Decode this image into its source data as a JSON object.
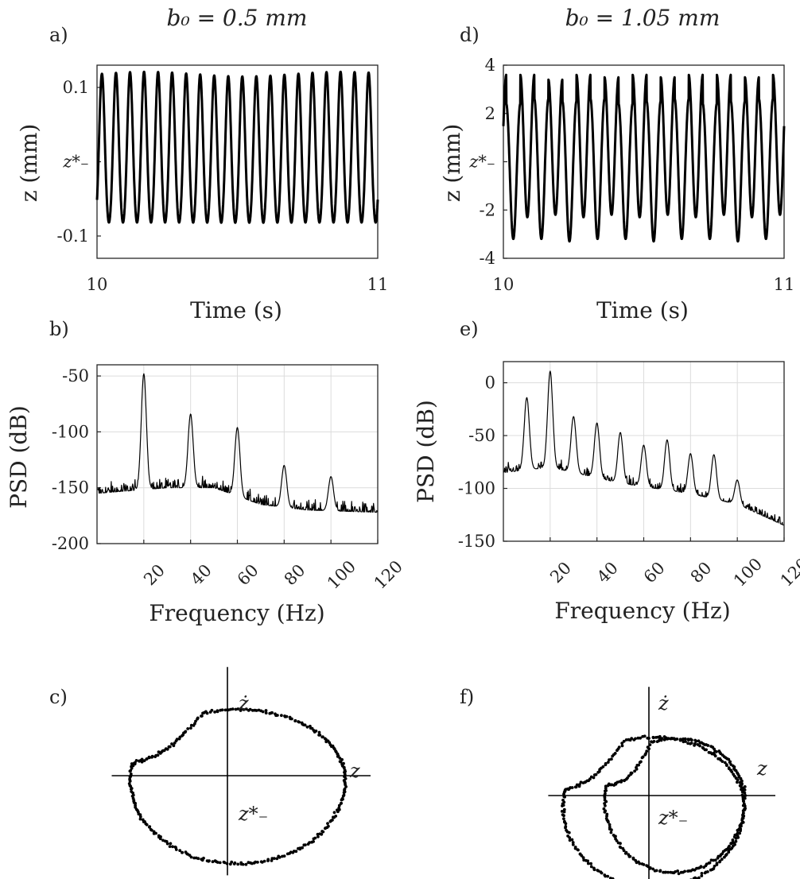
{
  "figure": {
    "titles": {
      "left": "b₀ = 0.5 mm",
      "right": "b₀ = 1.05 mm"
    }
  },
  "chart_data": [
    {
      "id": "a",
      "panel_label": "a)",
      "type": "line",
      "xlabel": "Time (s)",
      "ylabel": "z (mm)",
      "xlim": [
        10,
        11
      ],
      "ylim": [
        -0.13,
        0.13
      ],
      "xticks": [
        "10",
        "11"
      ],
      "yticks": [
        {
          "value": 0.1,
          "label": "0.1"
        },
        {
          "value": 0,
          "label": "z*₋"
        },
        {
          "value": -0.1,
          "label": "-0.1"
        }
      ],
      "grid": false,
      "series": [
        {
          "frequency_hz": 20,
          "amplitude_upper": 0.11,
          "amplitude_lower": -0.09,
          "phase_start": -0.075
        }
      ]
    },
    {
      "id": "d",
      "panel_label": "d)",
      "type": "line",
      "xlabel": "Time (s)",
      "ylabel": "z (mm)",
      "xlim": [
        10,
        11
      ],
      "ylim": [
        -4,
        4
      ],
      "xticks": [
        "10",
        "11"
      ],
      "yticks": [
        {
          "value": 4,
          "label": "4"
        },
        {
          "value": 2,
          "label": "2"
        },
        {
          "value": 0,
          "label": "z*₋"
        },
        {
          "value": -2,
          "label": "-2"
        },
        {
          "value": -4,
          "label": "-4"
        }
      ],
      "grid": false,
      "series": [
        {
          "frequency_hz": 20,
          "cycle_peaks": [
            2.4,
            3.6,
            2.6,
            3.4,
            2.5,
            3.6,
            2.6,
            3.5,
            2.4,
            3.6,
            2.5,
            3.5,
            2.6,
            3.6,
            2.4,
            3.6,
            2.5,
            3.5,
            2.6,
            3.6
          ],
          "cycle_troughs": [
            -3.2,
            -2.3,
            -3.2,
            -2.2,
            -3.3,
            -2.3,
            -3.2,
            -2.2,
            -3.2,
            -2.3,
            -3.3,
            -2.2,
            -3.2,
            -2.3,
            -3.2,
            -2.2,
            -3.3,
            -2.3,
            -3.2,
            -2.2
          ]
        }
      ]
    },
    {
      "id": "b",
      "panel_label": "b)",
      "type": "line",
      "xlabel": "Frequency (Hz)",
      "ylabel": "PSD (dB)",
      "xlim": [
        0,
        120
      ],
      "ylim": [
        -200,
        -40
      ],
      "xticks": [
        20,
        40,
        60,
        80,
        100,
        120
      ],
      "yticks": [
        {
          "value": -50,
          "label": "-50"
        },
        {
          "value": -100,
          "label": "-100"
        },
        {
          "value": -150,
          "label": "-150"
        },
        {
          "value": -200,
          "label": "-200"
        }
      ],
      "grid": true,
      "series": [
        {
          "noise_floor": [
            [
              0,
              -155
            ],
            [
              30,
              -150
            ],
            [
              50,
              -150
            ],
            [
              70,
              -165
            ],
            [
              90,
              -170
            ],
            [
              120,
              -172
            ]
          ],
          "peaks": [
            {
              "x": 20,
              "y": -48
            },
            {
              "x": 40,
              "y": -84
            },
            {
              "x": 60,
              "y": -96
            },
            {
              "x": 80,
              "y": -130
            },
            {
              "x": 100,
              "y": -140
            }
          ]
        }
      ]
    },
    {
      "id": "e",
      "panel_label": "e)",
      "type": "line",
      "xlabel": "Frequency (Hz)",
      "ylabel": "PSD (dB)",
      "xlim": [
        0,
        120
      ],
      "ylim": [
        -150,
        20
      ],
      "xticks": [
        20,
        40,
        60,
        80,
        100,
        120
      ],
      "yticks": [
        {
          "value": 0,
          "label": "0"
        },
        {
          "value": -50,
          "label": "-50"
        },
        {
          "value": -100,
          "label": "-100"
        },
        {
          "value": -150,
          "label": "-150"
        }
      ],
      "grid": true,
      "series": [
        {
          "noise_floor": [
            [
              0,
              -85
            ],
            [
              20,
              -80
            ],
            [
              50,
              -95
            ],
            [
              80,
              -105
            ],
            [
              100,
              -115
            ],
            [
              120,
              -135
            ]
          ],
          "peaks": [
            {
              "x": 10,
              "y": -14
            },
            {
              "x": 20,
              "y": 11
            },
            {
              "x": 30,
              "y": -32
            },
            {
              "x": 40,
              "y": -38
            },
            {
              "x": 50,
              "y": -47
            },
            {
              "x": 60,
              "y": -59
            },
            {
              "x": 70,
              "y": -54
            },
            {
              "x": 80,
              "y": -67
            },
            {
              "x": 90,
              "y": -68
            },
            {
              "x": 100,
              "y": -92
            }
          ]
        }
      ]
    },
    {
      "id": "c",
      "panel_label": "c)",
      "type": "scatter",
      "xlabel": "z",
      "ylabel": "ż",
      "origin_label": "z*₋",
      "xlim": [
        -1.35,
        1.5
      ],
      "ylim": [
        -1.1,
        1.2
      ],
      "series": [
        {
          "shape": "single-loop",
          "x_range": [
            -0.95,
            1.15
          ],
          "y_range": [
            -0.82,
            0.7
          ]
        }
      ]
    },
    {
      "id": "f",
      "panel_label": "f)",
      "type": "scatter",
      "xlabel": "z",
      "ylabel": "ż",
      "origin_label": "z*₋",
      "xlim": [
        -1.35,
        1.5
      ],
      "ylim": [
        -1.1,
        1.2
      ],
      "series": [
        {
          "shape": "double-loop",
          "x_range": [
            -0.95,
            1.03
          ],
          "y_range": [
            -0.95,
            0.7
          ]
        }
      ]
    }
  ]
}
